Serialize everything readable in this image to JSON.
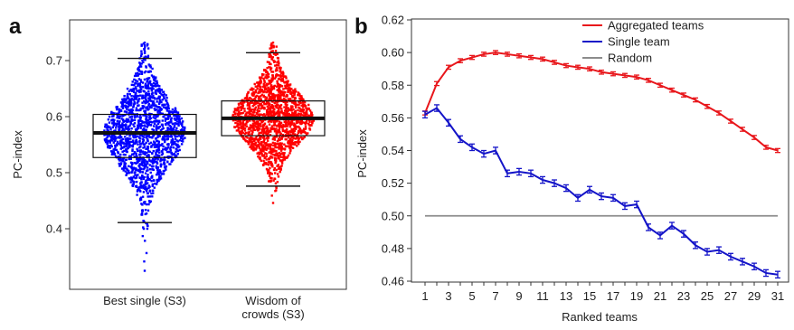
{
  "chart_data": [
    {
      "panel": "a",
      "type": "box",
      "ylabel": "PC-index",
      "ylim": [
        0.32,
        0.75
      ],
      "y_ticks": [
        0.4,
        0.5,
        0.6,
        0.7
      ],
      "y_tick_labels": [
        "0.4",
        "0.5",
        "0.6",
        "0.7"
      ],
      "categories": [
        "Best single (S3)",
        "Wisdom of crowds (S3)"
      ],
      "category_labels": [
        [
          "Best single (S3)"
        ],
        [
          "Wisdom of",
          "crowds (S3)"
        ]
      ],
      "series": [
        {
          "color": "#0000ff",
          "median": 0.571,
          "q1": 0.527,
          "q3": 0.604,
          "whisker_low": 0.411,
          "whisker_high": 0.704,
          "point_min": 0.325,
          "point_max": 0.732
        },
        {
          "color": "#ff0000",
          "median": 0.597,
          "q1": 0.566,
          "q3": 0.628,
          "whisker_low": 0.476,
          "whisker_high": 0.714,
          "point_min": 0.446,
          "point_max": 0.732
        }
      ]
    },
    {
      "panel": "b",
      "type": "line",
      "xlabel": "Ranked teams",
      "ylabel": "PC-index",
      "x_ticks": [
        1,
        3,
        5,
        7,
        9,
        11,
        13,
        15,
        17,
        19,
        21,
        23,
        25,
        27,
        29,
        31
      ],
      "xlim": [
        0,
        32
      ],
      "ylim": [
        0.46,
        0.62
      ],
      "y_ticks": [
        0.46,
        0.48,
        0.5,
        0.52,
        0.54,
        0.56,
        0.58,
        0.6,
        0.62
      ],
      "y_tick_labels": [
        "0.46",
        "0.48",
        "0.50",
        "0.52",
        "0.54",
        "0.56",
        "0.58",
        "0.60",
        "0.62"
      ],
      "legend_position": "top-right",
      "x": [
        1,
        2,
        3,
        4,
        5,
        6,
        7,
        8,
        9,
        10,
        11,
        12,
        13,
        14,
        15,
        16,
        17,
        18,
        19,
        20,
        21,
        22,
        23,
        24,
        25,
        26,
        27,
        28,
        29,
        30,
        31
      ],
      "series": [
        {
          "name": "Aggregated teams",
          "color": "#e8161b",
          "error_bar": 0.0012,
          "values": [
            0.563,
            0.581,
            0.591,
            0.595,
            0.597,
            0.599,
            0.6,
            0.599,
            0.598,
            0.597,
            0.596,
            0.594,
            0.592,
            0.591,
            0.59,
            0.588,
            0.587,
            0.586,
            0.585,
            0.583,
            0.58,
            0.577,
            0.574,
            0.571,
            0.567,
            0.563,
            0.558,
            0.553,
            0.548,
            0.542,
            0.54
          ]
        },
        {
          "name": "Single team",
          "color": "#1414c8",
          "error_bar": 0.002,
          "values": [
            0.562,
            0.566,
            0.557,
            0.547,
            0.542,
            0.538,
            0.54,
            0.526,
            0.527,
            0.526,
            0.522,
            0.52,
            0.517,
            0.511,
            0.516,
            0.512,
            0.511,
            0.506,
            0.507,
            0.493,
            0.488,
            0.494,
            0.489,
            0.482,
            0.478,
            0.479,
            0.475,
            0.472,
            0.469,
            0.465,
            0.464
          ]
        },
        {
          "name": "Random",
          "color": "#8c8c8c",
          "error_bar": 0,
          "values": [
            0.5,
            0.5,
            0.5,
            0.5,
            0.5,
            0.5,
            0.5,
            0.5,
            0.5,
            0.5,
            0.5,
            0.5,
            0.5,
            0.5,
            0.5,
            0.5,
            0.5,
            0.5,
            0.5,
            0.5,
            0.5,
            0.5,
            0.5,
            0.5,
            0.5,
            0.5,
            0.5,
            0.5,
            0.5,
            0.5,
            0.5
          ]
        }
      ]
    }
  ]
}
